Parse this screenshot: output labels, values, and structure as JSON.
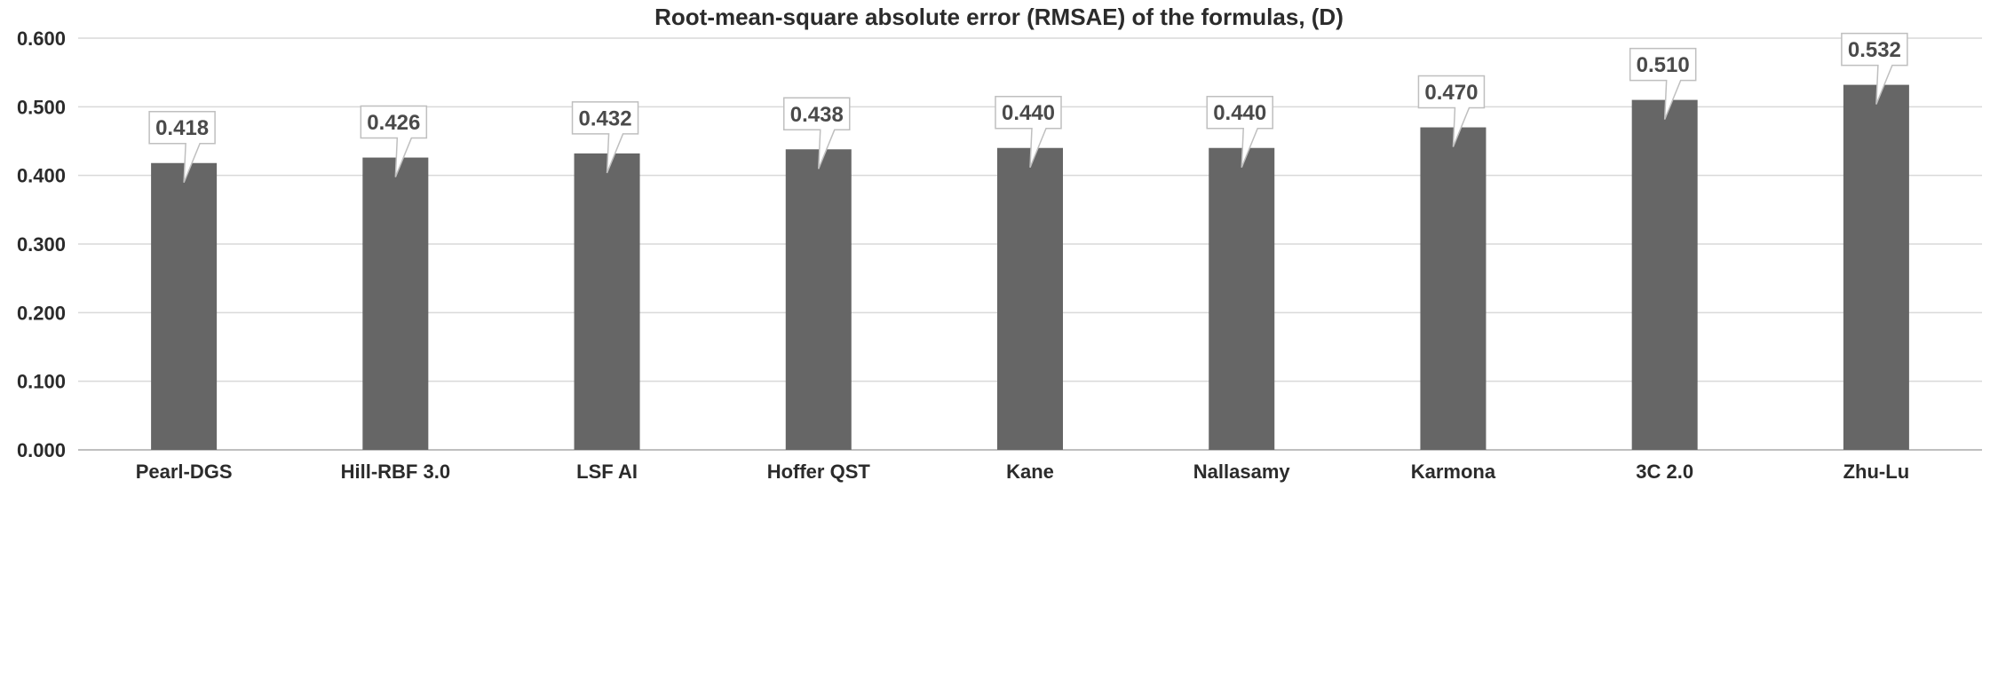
{
  "chart_data": {
    "type": "bar",
    "title": "Root-mean-square absolute error (RMSAE)  of the formulas, (D)",
    "xlabel": "",
    "ylabel": "",
    "categories": [
      "Pearl-DGS",
      "Hill-RBF 3.0",
      "LSF AI",
      "Hoffer QST",
      "Kane",
      "Nallasamy",
      "Karmona",
      "3C 2.0",
      "Zhu-Lu"
    ],
    "values": [
      0.418,
      0.426,
      0.432,
      0.438,
      0.44,
      0.44,
      0.47,
      0.51,
      0.532
    ],
    "data_labels": [
      "0.418",
      "0.426",
      "0.432",
      "0.438",
      "0.440",
      "0.440",
      "0.470",
      "0.510",
      "0.532"
    ],
    "ylim": [
      0,
      0.6
    ],
    "yticks": [
      0,
      0.1,
      0.2,
      0.3,
      0.4,
      0.5,
      0.6
    ],
    "ytick_labels": [
      "0.000",
      "0.100",
      "0.200",
      "0.300",
      "0.400",
      "0.500",
      "0.600"
    ],
    "grid": true,
    "legend": "none",
    "bar_color": "#666666"
  }
}
